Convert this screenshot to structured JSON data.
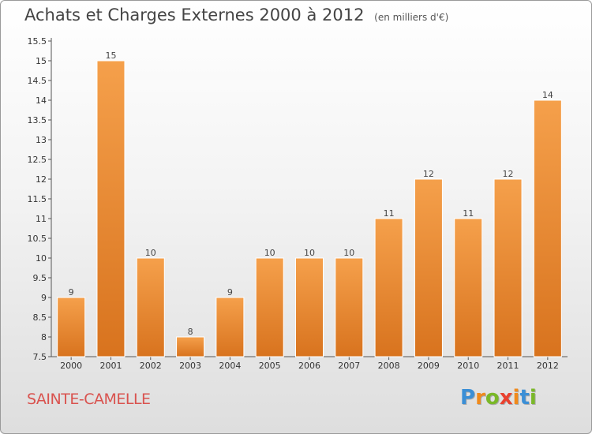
{
  "chart_data": {
    "type": "bar",
    "title": "Achats et Charges Externes 2000 à 2012",
    "subtitle": "(en milliers d'€)",
    "categories": [
      "2000",
      "2001",
      "2002",
      "2003",
      "2004",
      "2005",
      "2006",
      "2007",
      "2008",
      "2009",
      "2010",
      "2011",
      "2012"
    ],
    "values": [
      9,
      15,
      10,
      8,
      9,
      10,
      10,
      10,
      11,
      12,
      11,
      12,
      14
    ],
    "value_labels": [
      "9",
      "15",
      "10",
      "8",
      "9",
      "10",
      "10",
      "10",
      "11",
      "12",
      "11",
      "12",
      "14"
    ],
    "ylim": [
      7.5,
      15.5
    ],
    "yticks": [
      "7.5",
      "8",
      "8.5",
      "9",
      "9.5",
      "10",
      "10.5",
      "11",
      "11.5",
      "12",
      "12.5",
      "13",
      "13.5",
      "14",
      "14.5",
      "15",
      "15.5"
    ],
    "grid": false,
    "bar_color": "#f5a04b",
    "bar_color_dark": "#d8731e"
  },
  "place_name": "SAINTE-CAMELLE",
  "logo": {
    "letters": [
      "P",
      "r",
      "o",
      "x",
      "i",
      "t",
      "i"
    ],
    "colors": [
      "#3b8fd6",
      "#f08a1c",
      "#7ab828",
      "#e9412f",
      "#f08a1c",
      "#3b8fd6",
      "#7ab828"
    ]
  },
  "colors": {
    "place_name": "#d9534f",
    "title": "#444444"
  }
}
